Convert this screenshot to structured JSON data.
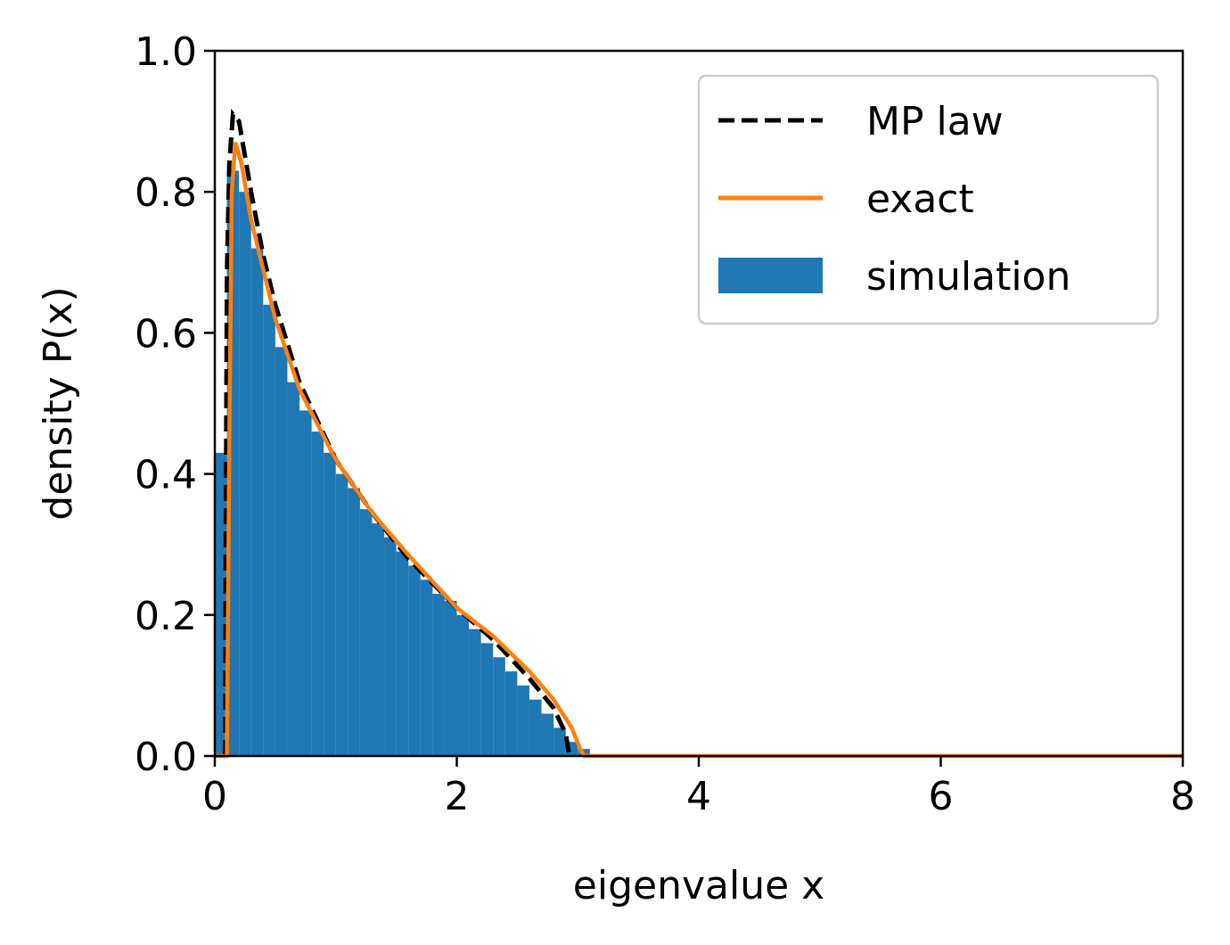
{
  "chart_data": {
    "type": "histogram",
    "x_label": "eigenvalue x",
    "y_label": "density P(x)",
    "xlim": [
      0,
      8
    ],
    "ylim": [
      0,
      1.0
    ],
    "xticks": [
      0,
      2,
      4,
      6,
      8
    ],
    "yticks": [
      {
        "value": 0,
        "label": "0.0"
      },
      {
        "value": 0.2,
        "label": "0.2"
      },
      {
        "value": 0.4,
        "label": "0.4"
      },
      {
        "value": 0.6,
        "label": "0.6"
      },
      {
        "value": 0.8,
        "label": "0.8"
      },
      {
        "value": 1.0,
        "label": "1.0"
      }
    ],
    "legend": "upper right",
    "histogram": {
      "name": "simulation",
      "color": "#1f77b4",
      "bins": [
        0,
        0.1,
        0.2,
        0.3,
        0.4,
        0.5,
        0.6,
        0.7,
        0.8,
        0.9,
        1.0,
        1.1,
        1.2,
        1.3,
        1.4,
        1.5,
        1.6,
        1.7,
        1.8,
        1.9,
        2.0,
        2.1,
        2.2,
        2.3,
        2.4,
        2.5,
        2.6,
        2.7,
        2.8,
        2.9,
        3.0,
        3.1
      ],
      "values": [
        0.43,
        0.83,
        0.8,
        0.72,
        0.64,
        0.58,
        0.53,
        0.49,
        0.46,
        0.43,
        0.4,
        0.38,
        0.35,
        0.33,
        0.31,
        0.29,
        0.27,
        0.25,
        0.23,
        0.22,
        0.2,
        0.18,
        0.16,
        0.14,
        0.12,
        0.1,
        0.08,
        0.06,
        0.04,
        0.02,
        0.01
      ]
    },
    "series": [
      {
        "name": "MP law",
        "color": "#000000",
        "dashed": true,
        "x": [
          0.084,
          0.1,
          0.12,
          0.15,
          0.2,
          0.3,
          0.4,
          0.5,
          0.7,
          1.0,
          1.3,
          1.6,
          2.0,
          2.3,
          2.6,
          2.8,
          2.9,
          2.93
        ],
        "values": [
          0,
          0.68,
          0.84,
          0.91,
          0.9,
          0.8,
          0.71,
          0.64,
          0.53,
          0.42,
          0.345,
          0.28,
          0.21,
          0.165,
          0.11,
          0.068,
          0.032,
          0
        ]
      },
      {
        "name": "exact",
        "color": "#ff7f0e",
        "dashed": false,
        "x": [
          0,
          0.1,
          0.12,
          0.14,
          0.17,
          0.22,
          0.3,
          0.4,
          0.5,
          0.7,
          1.0,
          1.3,
          1.6,
          2.0,
          2.3,
          2.6,
          2.8,
          2.95,
          3.02,
          3.05,
          8
        ],
        "values": [
          0,
          0,
          0.45,
          0.8,
          0.87,
          0.84,
          0.76,
          0.69,
          0.62,
          0.52,
          0.42,
          0.345,
          0.285,
          0.21,
          0.17,
          0.12,
          0.08,
          0.04,
          0.01,
          0,
          0
        ]
      }
    ]
  }
}
